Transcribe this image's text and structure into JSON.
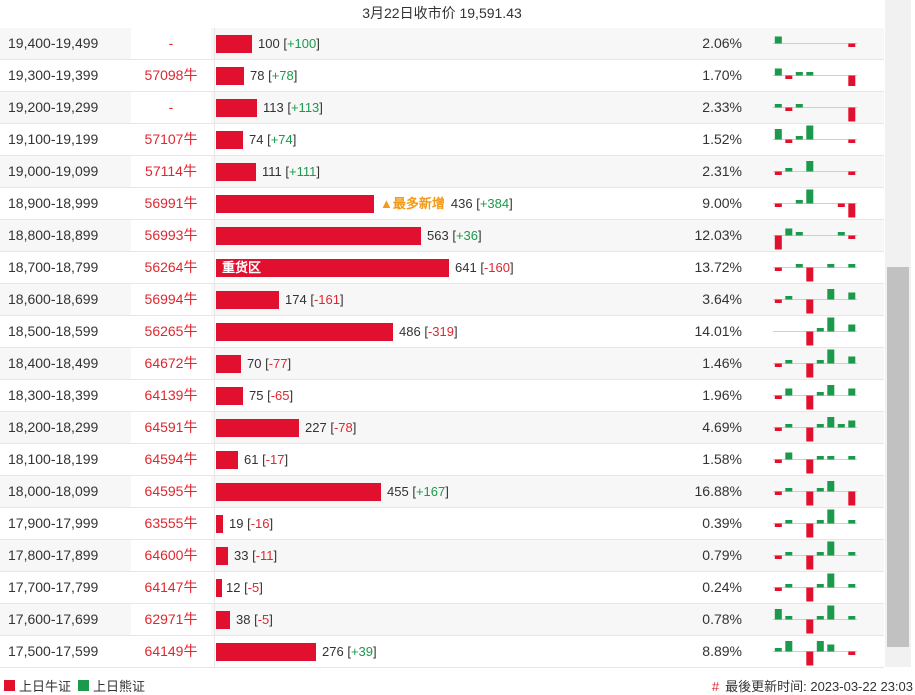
{
  "header": {
    "title": "3月22日收市价 19,591.43"
  },
  "colors": {
    "bull": "#e0102e",
    "bear": "#1a9a4a",
    "badge": "#f29a19"
  },
  "rows": [
    {
      "range": "19,400-19,499",
      "code": "-",
      "count": 100,
      "count_text": "100",
      "change": "+100",
      "pct_value": 2.06,
      "pct": "2.06%",
      "spark": [
        2,
        0,
        0,
        0,
        0,
        0,
        0,
        -1
      ]
    },
    {
      "range": "19,300-19,399",
      "code": "57098牛",
      "count": 78,
      "count_text": "78",
      "change": "+78",
      "pct_value": 1.7,
      "pct": "1.70%",
      "spark": [
        2,
        -1,
        1,
        1,
        0,
        0,
        0,
        -3
      ]
    },
    {
      "range": "19,200-19,299",
      "code": "-",
      "count": 113,
      "count_text": "113",
      "change": "+113",
      "pct_value": 2.33,
      "pct": "2.33%",
      "spark": [
        1,
        -1,
        1,
        0,
        0,
        0,
        0,
        -4
      ]
    },
    {
      "range": "19,100-19,199",
      "code": "57107牛",
      "count": 74,
      "count_text": "74",
      "change": "+74",
      "pct_value": 1.52,
      "pct": "1.52%",
      "spark": [
        3,
        -1,
        1,
        4,
        0,
        0,
        0,
        -1
      ]
    },
    {
      "range": "19,000-19,099",
      "code": "57114牛",
      "count": 111,
      "count_text": "111",
      "change": "+111",
      "pct_value": 2.31,
      "pct": "2.31%",
      "spark": [
        -1,
        1,
        0,
        3,
        0,
        0,
        0,
        -1
      ]
    },
    {
      "range": "18,900-18,999",
      "code": "56991牛",
      "count": 436,
      "count_text": "436",
      "change": "+384",
      "pct_value": 9.0,
      "pct": "9.00%",
      "spark": [
        -1,
        0,
        1,
        4,
        0,
        0,
        -1,
        -4
      ],
      "badge": "▲最多新增"
    },
    {
      "range": "18,800-18,899",
      "code": "56993牛",
      "count": 563,
      "count_text": "563",
      "change": "+36",
      "pct_value": 12.03,
      "pct": "12.03%",
      "spark": [
        -4,
        2,
        1,
        0,
        0,
        0,
        1,
        -1
      ]
    },
    {
      "range": "18,700-18,799",
      "code": "56264牛",
      "count": 641,
      "count_text": "641",
      "change": "-160",
      "pct_value": 13.72,
      "pct": "13.72%",
      "spark": [
        -1,
        0,
        1,
        -4,
        0,
        1,
        0,
        1
      ],
      "label": "重货区"
    },
    {
      "range": "18,600-18,699",
      "code": "56994牛",
      "count": 174,
      "count_text": "174",
      "change": "-161",
      "pct_value": 3.64,
      "pct": "3.64%",
      "spark": [
        -1,
        1,
        0,
        -4,
        0,
        3,
        0,
        2
      ]
    },
    {
      "range": "18,500-18,599",
      "code": "56265牛",
      "count": 486,
      "count_text": "486",
      "change": "-319",
      "pct_value": 14.01,
      "pct": "14.01%",
      "spark": [
        0,
        0,
        0,
        -4,
        1,
        4,
        0,
        2
      ]
    },
    {
      "range": "18,400-18,499",
      "code": "64672牛",
      "count": 70,
      "count_text": "70",
      "change": "-77",
      "pct_value": 1.46,
      "pct": "1.46%",
      "spark": [
        -1,
        1,
        0,
        -4,
        1,
        4,
        0,
        2
      ]
    },
    {
      "range": "18,300-18,399",
      "code": "64139牛",
      "count": 75,
      "count_text": "75",
      "change": "-65",
      "pct_value": 1.96,
      "pct": "1.96%",
      "spark": [
        -1,
        2,
        0,
        -4,
        1,
        3,
        0,
        2
      ]
    },
    {
      "range": "18,200-18,299",
      "code": "64591牛",
      "count": 227,
      "count_text": "227",
      "change": "-78",
      "pct_value": 4.69,
      "pct": "4.69%",
      "spark": [
        -1,
        1,
        0,
        -4,
        1,
        3,
        1,
        2
      ]
    },
    {
      "range": "18,100-18,199",
      "code": "64594牛",
      "count": 61,
      "count_text": "61",
      "change": "-17",
      "pct_value": 1.58,
      "pct": "1.58%",
      "spark": [
        -1,
        2,
        0,
        -4,
        1,
        1,
        0,
        1
      ]
    },
    {
      "range": "18,000-18,099",
      "code": "64595牛",
      "count": 455,
      "count_text": "455",
      "change": "+167",
      "pct_value": 16.88,
      "pct": "16.88%",
      "spark": [
        -1,
        1,
        0,
        -4,
        1,
        3,
        0,
        -4
      ]
    },
    {
      "range": "17,900-17,999",
      "code": "63555牛",
      "count": 19,
      "count_text": "19",
      "change": "-16",
      "pct_value": 0.39,
      "pct": "0.39%",
      "spark": [
        -1,
        1,
        0,
        -4,
        1,
        4,
        0,
        1
      ]
    },
    {
      "range": "17,800-17,899",
      "code": "64600牛",
      "count": 33,
      "count_text": "33",
      "change": "-11",
      "pct_value": 0.79,
      "pct": "0.79%",
      "spark": [
        -1,
        1,
        0,
        -4,
        1,
        4,
        0,
        1
      ]
    },
    {
      "range": "17,700-17,799",
      "code": "64147牛",
      "count": 12,
      "count_text": "12",
      "change": "-5",
      "pct_value": 0.24,
      "pct": "0.24%",
      "spark": [
        -1,
        1,
        0,
        -4,
        1,
        4,
        0,
        1
      ]
    },
    {
      "range": "17,600-17,699",
      "code": "62971牛",
      "count": 38,
      "count_text": "38",
      "change": "-5",
      "pct_value": 0.78,
      "pct": "0.78%",
      "spark": [
        3,
        1,
        0,
        -4,
        1,
        4,
        0,
        1
      ]
    },
    {
      "range": "17,500-17,599",
      "code": "64149牛",
      "count": 276,
      "count_text": "276",
      "change": "+39",
      "pct_value": 8.89,
      "pct": "8.89%",
      "spark": [
        1,
        3,
        0,
        -4,
        3,
        2,
        0,
        -1
      ]
    }
  ],
  "footer": {
    "legend_bull": "上日牛证",
    "legend_bear": "上日熊证",
    "hash": "#",
    "updated": "最後更新时间: 2023-03-22 23:03"
  }
}
